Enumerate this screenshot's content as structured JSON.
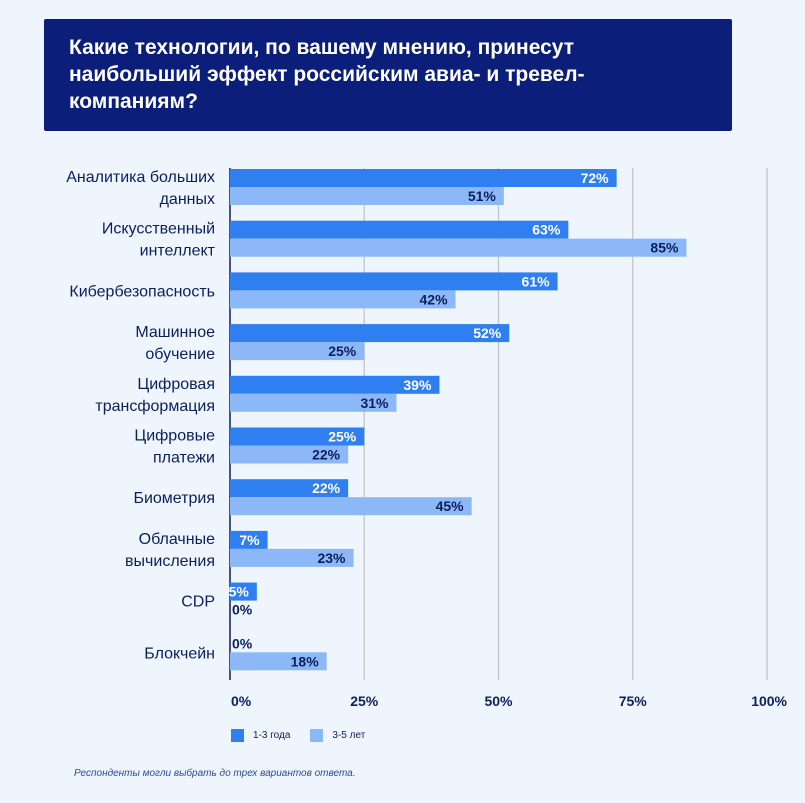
{
  "title": "Какие технологии, по вашему мнению, принесут наибольший эффект российским авиа- и тревел-компаниям?",
  "footnote": "Респонденты могли выбрать до трех вариантов ответа.",
  "colors": {
    "series1": "#2f7ff0",
    "series2": "#8db8f7",
    "banner": "#0b1f7a",
    "grid": "#c4c4c4"
  },
  "chart_data": {
    "type": "bar",
    "orientation": "horizontal",
    "categories": [
      [
        "Аналитика больших",
        "данных"
      ],
      [
        "Искусственный",
        "интеллект"
      ],
      [
        "Кибербезопасность"
      ],
      [
        "Машинное",
        "обучение"
      ],
      [
        "Цифровая",
        "трансформация"
      ],
      [
        "Цифровые",
        "платежи"
      ],
      [
        "Биометрия"
      ],
      [
        "Облачные",
        "вычисления"
      ],
      [
        "CDP"
      ],
      [
        "Блокчейн"
      ]
    ],
    "series": [
      {
        "name": "1-3 года",
        "values": [
          72,
          63,
          61,
          52,
          39,
          25,
          22,
          7,
          5,
          0
        ]
      },
      {
        "name": "3-5 лет",
        "values": [
          51,
          85,
          42,
          25,
          31,
          22,
          45,
          23,
          0,
          18
        ]
      }
    ],
    "xlim": [
      0,
      100
    ],
    "xticks": [
      "0%",
      "25%",
      "50%",
      "75%",
      "100%"
    ],
    "tick_values": [
      0,
      25,
      50,
      75,
      100
    ],
    "value_suffix": "%",
    "grid": true,
    "legend_position": "bottom-left"
  }
}
